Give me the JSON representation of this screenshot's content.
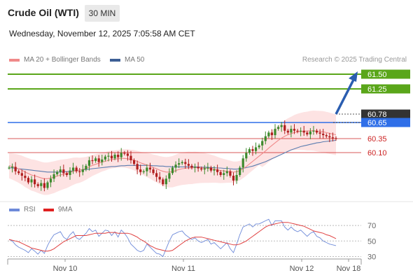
{
  "header": {
    "title": "Crude Oil (WTI)",
    "timeframe": "30 MIN",
    "datetime": "Wednesday, November 12, 2025 7:05:58 AM CET"
  },
  "legend": {
    "ma20_label": "MA 20 + Bollinger Bands",
    "ma50_label": "MA 50",
    "credit": "Research © 2025 Trading Central"
  },
  "rsi_legend": {
    "rsi_label": "RSI",
    "ma_label": "9MA"
  },
  "colors": {
    "green_level": "#5aa61a",
    "blue_level": "#2f6fe8",
    "red_level": "#cc2222",
    "candle_up": "#3d8a2d",
    "candle_down": "#b01e1e",
    "ma20": "#f08a8a",
    "ma50": "#5b7db0",
    "bollinger_fill": "#fde3e3",
    "rsi_line": "#6d8ad9",
    "rsi_ma": "#e04040",
    "arrow": "#2a5db0",
    "current_tag": "#333333"
  },
  "chart_data": {
    "type": "candlestick",
    "instrument": "Crude Oil (WTI)",
    "timeframe": "30 MIN",
    "ylim": [
      59.25,
      61.6
    ],
    "price_levels": [
      {
        "label": "61.50",
        "value": 61.5,
        "kind": "resistance",
        "color": "green"
      },
      {
        "label": "61.25",
        "value": 61.25,
        "kind": "resistance",
        "color": "green"
      },
      {
        "label": "60.78",
        "value": 60.78,
        "kind": "current",
        "color": "dark"
      },
      {
        "label": "60.65",
        "value": 60.65,
        "kind": "pivot",
        "color": "blue"
      },
      {
        "label": "60.35",
        "value": 60.35,
        "kind": "support",
        "color": "red"
      },
      {
        "label": "60.10",
        "value": 60.1,
        "kind": "support",
        "color": "red"
      }
    ],
    "x_ticks": [
      "Nov 10",
      "Nov 11",
      "Nov 12",
      "Nov 18"
    ],
    "closes": [
      60.0,
      60.02,
      59.9,
      59.85,
      59.78,
      59.72,
      59.6,
      59.68,
      59.55,
      59.5,
      59.58,
      59.45,
      59.6,
      59.7,
      59.82,
      59.88,
      59.95,
      59.85,
      59.8,
      59.92,
      60.0,
      59.9,
      59.88,
      59.95,
      60.05,
      60.2,
      60.18,
      60.25,
      60.15,
      60.22,
      60.3,
      60.32,
      60.25,
      60.35,
      60.28,
      60.4,
      60.38,
      60.32,
      60.2,
      60.1,
      59.95,
      59.88,
      59.9,
      60.0,
      59.95,
      59.85,
      59.75,
      59.68,
      59.55,
      59.7,
      59.85,
      60.0,
      60.08,
      60.12,
      60.15,
      60.1,
      60.05,
      60.0,
      60.02,
      59.98,
      59.95,
      59.98,
      60.0,
      59.92,
      59.95,
      59.88,
      59.8,
      59.85,
      59.9,
      59.78,
      59.65,
      59.8,
      60.0,
      60.25,
      60.4,
      60.5,
      60.45,
      60.55,
      60.6,
      60.72,
      60.85,
      60.95,
      60.88,
      61.05,
      61.1,
      61.15,
      61.0,
      60.95,
      61.05,
      61.0,
      60.98,
      61.0,
      60.95,
      60.9,
      60.98,
      61.0,
      60.95,
      60.92,
      60.88,
      60.85,
      60.82,
      60.8,
      60.78
    ],
    "ma20": [
      60.05,
      60.03,
      60.0,
      59.97,
      59.93,
      59.88,
      59.84,
      59.8,
      59.78,
      59.75,
      59.72,
      59.7,
      59.7,
      59.72,
      59.74,
      59.77,
      59.8,
      59.82,
      59.84,
      59.87,
      59.9,
      59.92,
      59.93,
      59.95,
      59.98,
      60.02,
      60.06,
      60.09,
      60.12,
      60.15,
      60.17,
      60.2,
      60.22,
      60.23,
      60.24,
      60.25,
      60.25,
      60.24,
      60.22,
      60.2,
      60.17,
      60.13,
      60.1,
      60.07,
      60.04,
      60.0,
      59.97,
      59.93,
      59.9,
      59.88,
      59.88,
      59.89,
      59.92,
      59.95,
      59.97,
      59.98,
      59.99,
      59.99,
      60.0,
      60.0,
      60.0,
      59.99,
      59.98,
      59.97,
      59.96,
      59.94,
      59.92,
      59.91,
      59.9,
      59.89,
      59.88,
      59.89,
      59.92,
      59.97,
      60.03,
      60.1,
      60.17,
      60.24,
      60.31,
      60.38,
      60.45,
      60.53,
      60.6,
      60.67,
      60.74,
      60.8,
      60.85,
      60.89,
      60.92,
      60.95,
      60.97,
      60.98,
      60.99,
      60.99,
      61.0,
      61.0,
      60.99,
      60.98,
      60.97,
      60.95,
      60.93,
      60.91,
      60.89
    ],
    "ma50": [
      60.0,
      59.99,
      59.98,
      59.97,
      59.96,
      59.95,
      59.94,
      59.93,
      59.92,
      59.91,
      59.9,
      59.89,
      59.88,
      59.88,
      59.88,
      59.88,
      59.88,
      59.89,
      59.89,
      59.9,
      59.91,
      59.92,
      59.93,
      59.94,
      59.95,
      59.96,
      59.97,
      59.98,
      59.99,
      60.0,
      60.01,
      60.02,
      60.03,
      60.03,
      60.04,
      60.05,
      60.05,
      60.06,
      60.06,
      60.06,
      60.06,
      60.06,
      60.06,
      60.06,
      60.06,
      60.05,
      60.05,
      60.04,
      60.04,
      60.03,
      60.03,
      60.02,
      60.02,
      60.02,
      60.02,
      60.02,
      60.02,
      60.02,
      60.02,
      60.02,
      60.01,
      60.01,
      60.01,
      60.0,
      60.0,
      59.99,
      59.99,
      59.98,
      59.98,
      59.97,
      59.96,
      59.96,
      59.97,
      59.98,
      60.0,
      60.02,
      60.04,
      60.07,
      60.1,
      60.13,
      60.16,
      60.2,
      60.24,
      60.28,
      60.32,
      60.36,
      60.4,
      60.44,
      60.48,
      60.51,
      60.54,
      60.57,
      60.59,
      60.61,
      60.63,
      60.65,
      60.67,
      60.68,
      60.7,
      60.71,
      60.72,
      60.73,
      60.74
    ],
    "projection": {
      "from": 60.78,
      "to": 61.5
    },
    "rsi": {
      "ylim": [
        25,
        80
      ],
      "ticks": [
        "70",
        "50",
        "30"
      ],
      "values": [
        52,
        50,
        45,
        42,
        40,
        38,
        35,
        40,
        37,
        33,
        38,
        34,
        44,
        52,
        58,
        60,
        62,
        55,
        52,
        58,
        62,
        54,
        52,
        56,
        60,
        66,
        62,
        64,
        56,
        60,
        64,
        63,
        57,
        62,
        55,
        64,
        60,
        54,
        46,
        42,
        38,
        36,
        38,
        46,
        42,
        38,
        34,
        33,
        30,
        40,
        50,
        58,
        60,
        62,
        63,
        58,
        55,
        52,
        54,
        50,
        48,
        50,
        52,
        46,
        48,
        44,
        40,
        44,
        48,
        40,
        35,
        46,
        58,
        68,
        70,
        72,
        68,
        72,
        72,
        74,
        76,
        78,
        70,
        76,
        76,
        76,
        68,
        64,
        68,
        64,
        62,
        64,
        60,
        56,
        60,
        62,
        56,
        54,
        50,
        48,
        46,
        45,
        44
      ],
      "ma9": [
        52,
        51,
        50,
        49,
        47,
        45,
        43,
        41,
        40,
        39,
        38,
        37,
        37,
        38,
        40,
        43,
        46,
        49,
        51,
        53,
        55,
        57,
        57,
        57,
        57,
        58,
        59,
        60,
        60,
        60,
        60,
        61,
        61,
        61,
        60,
        60,
        60,
        60,
        59,
        57,
        55,
        52,
        50,
        47,
        44,
        42,
        40,
        39,
        38,
        37,
        37,
        38,
        41,
        44,
        47,
        50,
        52,
        54,
        55,
        55,
        55,
        54,
        53,
        52,
        51,
        50,
        49,
        48,
        47,
        46,
        45,
        45,
        46,
        48,
        50,
        53,
        56,
        59,
        62,
        65,
        68,
        70,
        71,
        72,
        73,
        74,
        74,
        74,
        73,
        72,
        71,
        70,
        69,
        67,
        65,
        63,
        62,
        61,
        60,
        58,
        57,
        55,
        53
      ]
    }
  }
}
